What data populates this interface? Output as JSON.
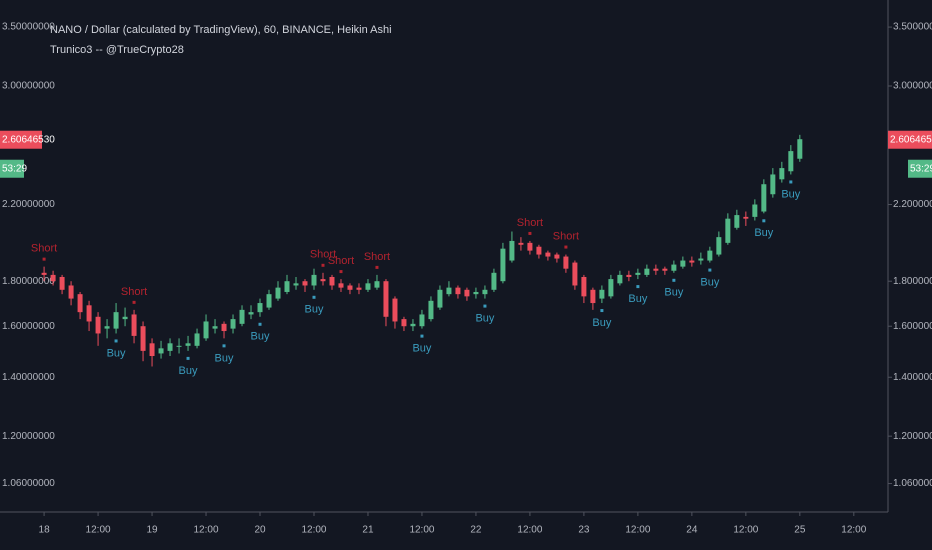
{
  "chart_data": {
    "type": "candlestick",
    "title": "NANO / Dollar (calculated by TradingView), 60, BINANCE, Heikin Ashi",
    "subtitle": "Trunico3 -- @TrueCrypto28",
    "up_color": "#53b987",
    "down_color": "#eb4d5c",
    "log_scale": true,
    "grid": false,
    "ylim": [
      0.984,
      3.757
    ],
    "yticks": [
      {
        "value": 3.5,
        "label": "3.50000000"
      },
      {
        "value": 3.0,
        "label": "3.00000000"
      },
      {
        "value": 2.2,
        "label": "2.20000000"
      },
      {
        "value": 1.8,
        "label": "1.80000000"
      },
      {
        "value": 1.6,
        "label": "1.60000000"
      },
      {
        "value": 1.4,
        "label": "1.40000000"
      },
      {
        "value": 1.2,
        "label": "1.20000000"
      },
      {
        "value": 1.06,
        "label": "1.06000000"
      }
    ],
    "xlim": [
      -4.9,
      93.8
    ],
    "xticks": [
      {
        "value": 0,
        "label": "18"
      },
      {
        "value": 6,
        "label": "12:00"
      },
      {
        "value": 12,
        "label": "19"
      },
      {
        "value": 18,
        "label": "12:00"
      },
      {
        "value": 24,
        "label": "20"
      },
      {
        "value": 30,
        "label": "12:00"
      },
      {
        "value": 36,
        "label": "21"
      },
      {
        "value": 42,
        "label": "12:00"
      },
      {
        "value": 48,
        "label": "22"
      },
      {
        "value": 54,
        "label": "12:00"
      },
      {
        "value": 60,
        "label": "23"
      },
      {
        "value": 66,
        "label": "12:00"
      },
      {
        "value": 72,
        "label": "24"
      },
      {
        "value": 78,
        "label": "12:00"
      },
      {
        "value": 84,
        "label": "25"
      },
      {
        "value": 90,
        "label": "12:00"
      }
    ],
    "open": [
      1.84,
      1.83,
      1.82,
      1.78,
      1.74,
      1.69,
      1.64,
      1.59,
      1.59,
      1.63,
      1.65,
      1.6,
      1.53,
      1.49,
      1.5,
      1.52,
      1.52,
      1.52,
      1.55,
      1.59,
      1.61,
      1.59,
      1.61,
      1.65,
      1.66,
      1.68,
      1.72,
      1.75,
      1.78,
      1.8,
      1.78,
      1.81,
      1.82,
      1.79,
      1.78,
      1.77,
      1.76,
      1.77,
      1.8,
      1.72,
      1.63,
      1.6,
      1.6,
      1.63,
      1.68,
      1.74,
      1.77,
      1.76,
      1.74,
      1.74,
      1.76,
      1.8,
      1.9,
      1.99,
      1.99,
      1.97,
      1.94,
      1.93,
      1.92,
      1.89,
      1.82,
      1.76,
      1.72,
      1.73,
      1.79,
      1.83,
      1.83,
      1.83,
      1.86,
      1.86,
      1.85,
      1.87,
      1.9,
      1.9,
      1.9,
      1.93,
      1.99,
      2.07,
      2.13,
      2.13,
      2.16,
      2.26,
      2.35,
      2.4,
      2.48
    ],
    "high": [
      1.87,
      1.85,
      1.83,
      1.8,
      1.75,
      1.71,
      1.66,
      1.63,
      1.7,
      1.68,
      1.67,
      1.62,
      1.55,
      1.54,
      1.55,
      1.55,
      1.56,
      1.59,
      1.65,
      1.63,
      1.62,
      1.65,
      1.69,
      1.69,
      1.72,
      1.76,
      1.8,
      1.83,
      1.82,
      1.81,
      1.86,
      1.84,
      1.83,
      1.81,
      1.79,
      1.79,
      1.81,
      1.83,
      1.81,
      1.73,
      1.64,
      1.63,
      1.67,
      1.73,
      1.78,
      1.8,
      1.78,
      1.77,
      1.77,
      1.78,
      1.86,
      1.99,
      2.05,
      2.02,
      2.0,
      1.98,
      1.95,
      1.94,
      1.93,
      1.9,
      1.83,
      1.77,
      1.78,
      1.83,
      1.85,
      1.85,
      1.86,
      1.88,
      1.88,
      1.87,
      1.9,
      1.92,
      1.92,
      1.94,
      1.97,
      2.05,
      2.15,
      2.17,
      2.16,
      2.23,
      2.35,
      2.42,
      2.46,
      2.57,
      2.64
    ],
    "low": [
      1.8,
      1.78,
      1.74,
      1.69,
      1.63,
      1.58,
      1.52,
      1.55,
      1.57,
      1.6,
      1.53,
      1.46,
      1.44,
      1.47,
      1.48,
      1.49,
      1.5,
      1.51,
      1.54,
      1.57,
      1.55,
      1.57,
      1.6,
      1.63,
      1.64,
      1.67,
      1.71,
      1.74,
      1.76,
      1.75,
      1.76,
      1.78,
      1.76,
      1.75,
      1.74,
      1.74,
      1.75,
      1.76,
      1.6,
      1.59,
      1.58,
      1.58,
      1.59,
      1.62,
      1.67,
      1.73,
      1.72,
      1.71,
      1.72,
      1.72,
      1.75,
      1.79,
      1.89,
      1.95,
      1.93,
      1.91,
      1.9,
      1.89,
      1.84,
      1.76,
      1.7,
      1.67,
      1.7,
      1.72,
      1.78,
      1.8,
      1.81,
      1.82,
      1.83,
      1.83,
      1.84,
      1.86,
      1.87,
      1.88,
      1.89,
      1.92,
      1.98,
      2.06,
      2.08,
      2.11,
      2.15,
      2.24,
      2.33,
      2.38,
      2.46
    ],
    "close": [
      1.83,
      1.8,
      1.76,
      1.72,
      1.66,
      1.62,
      1.57,
      1.6,
      1.66,
      1.64,
      1.56,
      1.5,
      1.48,
      1.51,
      1.53,
      1.52,
      1.53,
      1.57,
      1.62,
      1.6,
      1.58,
      1.63,
      1.67,
      1.66,
      1.7,
      1.74,
      1.77,
      1.8,
      1.79,
      1.78,
      1.83,
      1.8,
      1.78,
      1.77,
      1.76,
      1.76,
      1.79,
      1.8,
      1.64,
      1.62,
      1.6,
      1.61,
      1.65,
      1.71,
      1.76,
      1.77,
      1.74,
      1.73,
      1.75,
      1.76,
      1.84,
      1.96,
      2.0,
      1.98,
      1.95,
      1.93,
      1.92,
      1.91,
      1.86,
      1.78,
      1.73,
      1.7,
      1.76,
      1.81,
      1.83,
      1.82,
      1.84,
      1.86,
      1.85,
      1.85,
      1.88,
      1.9,
      1.89,
      1.91,
      1.95,
      2.02,
      2.12,
      2.14,
      2.12,
      2.2,
      2.32,
      2.38,
      2.42,
      2.53,
      2.61
    ],
    "signals": {
      "buy": {
        "label": "Buy",
        "color": "#3a9bbd",
        "at": [
          8,
          16,
          20,
          24,
          30,
          42,
          49,
          62,
          66,
          70,
          74,
          80,
          83
        ]
      },
      "short": {
        "label": "Short",
        "color": "#b3232f",
        "at": [
          0,
          10,
          31,
          33,
          37,
          54,
          58
        ]
      }
    },
    "last_price": {
      "value": 2.6064653,
      "label": "2.60646530"
    },
    "countdown": "53:29"
  }
}
